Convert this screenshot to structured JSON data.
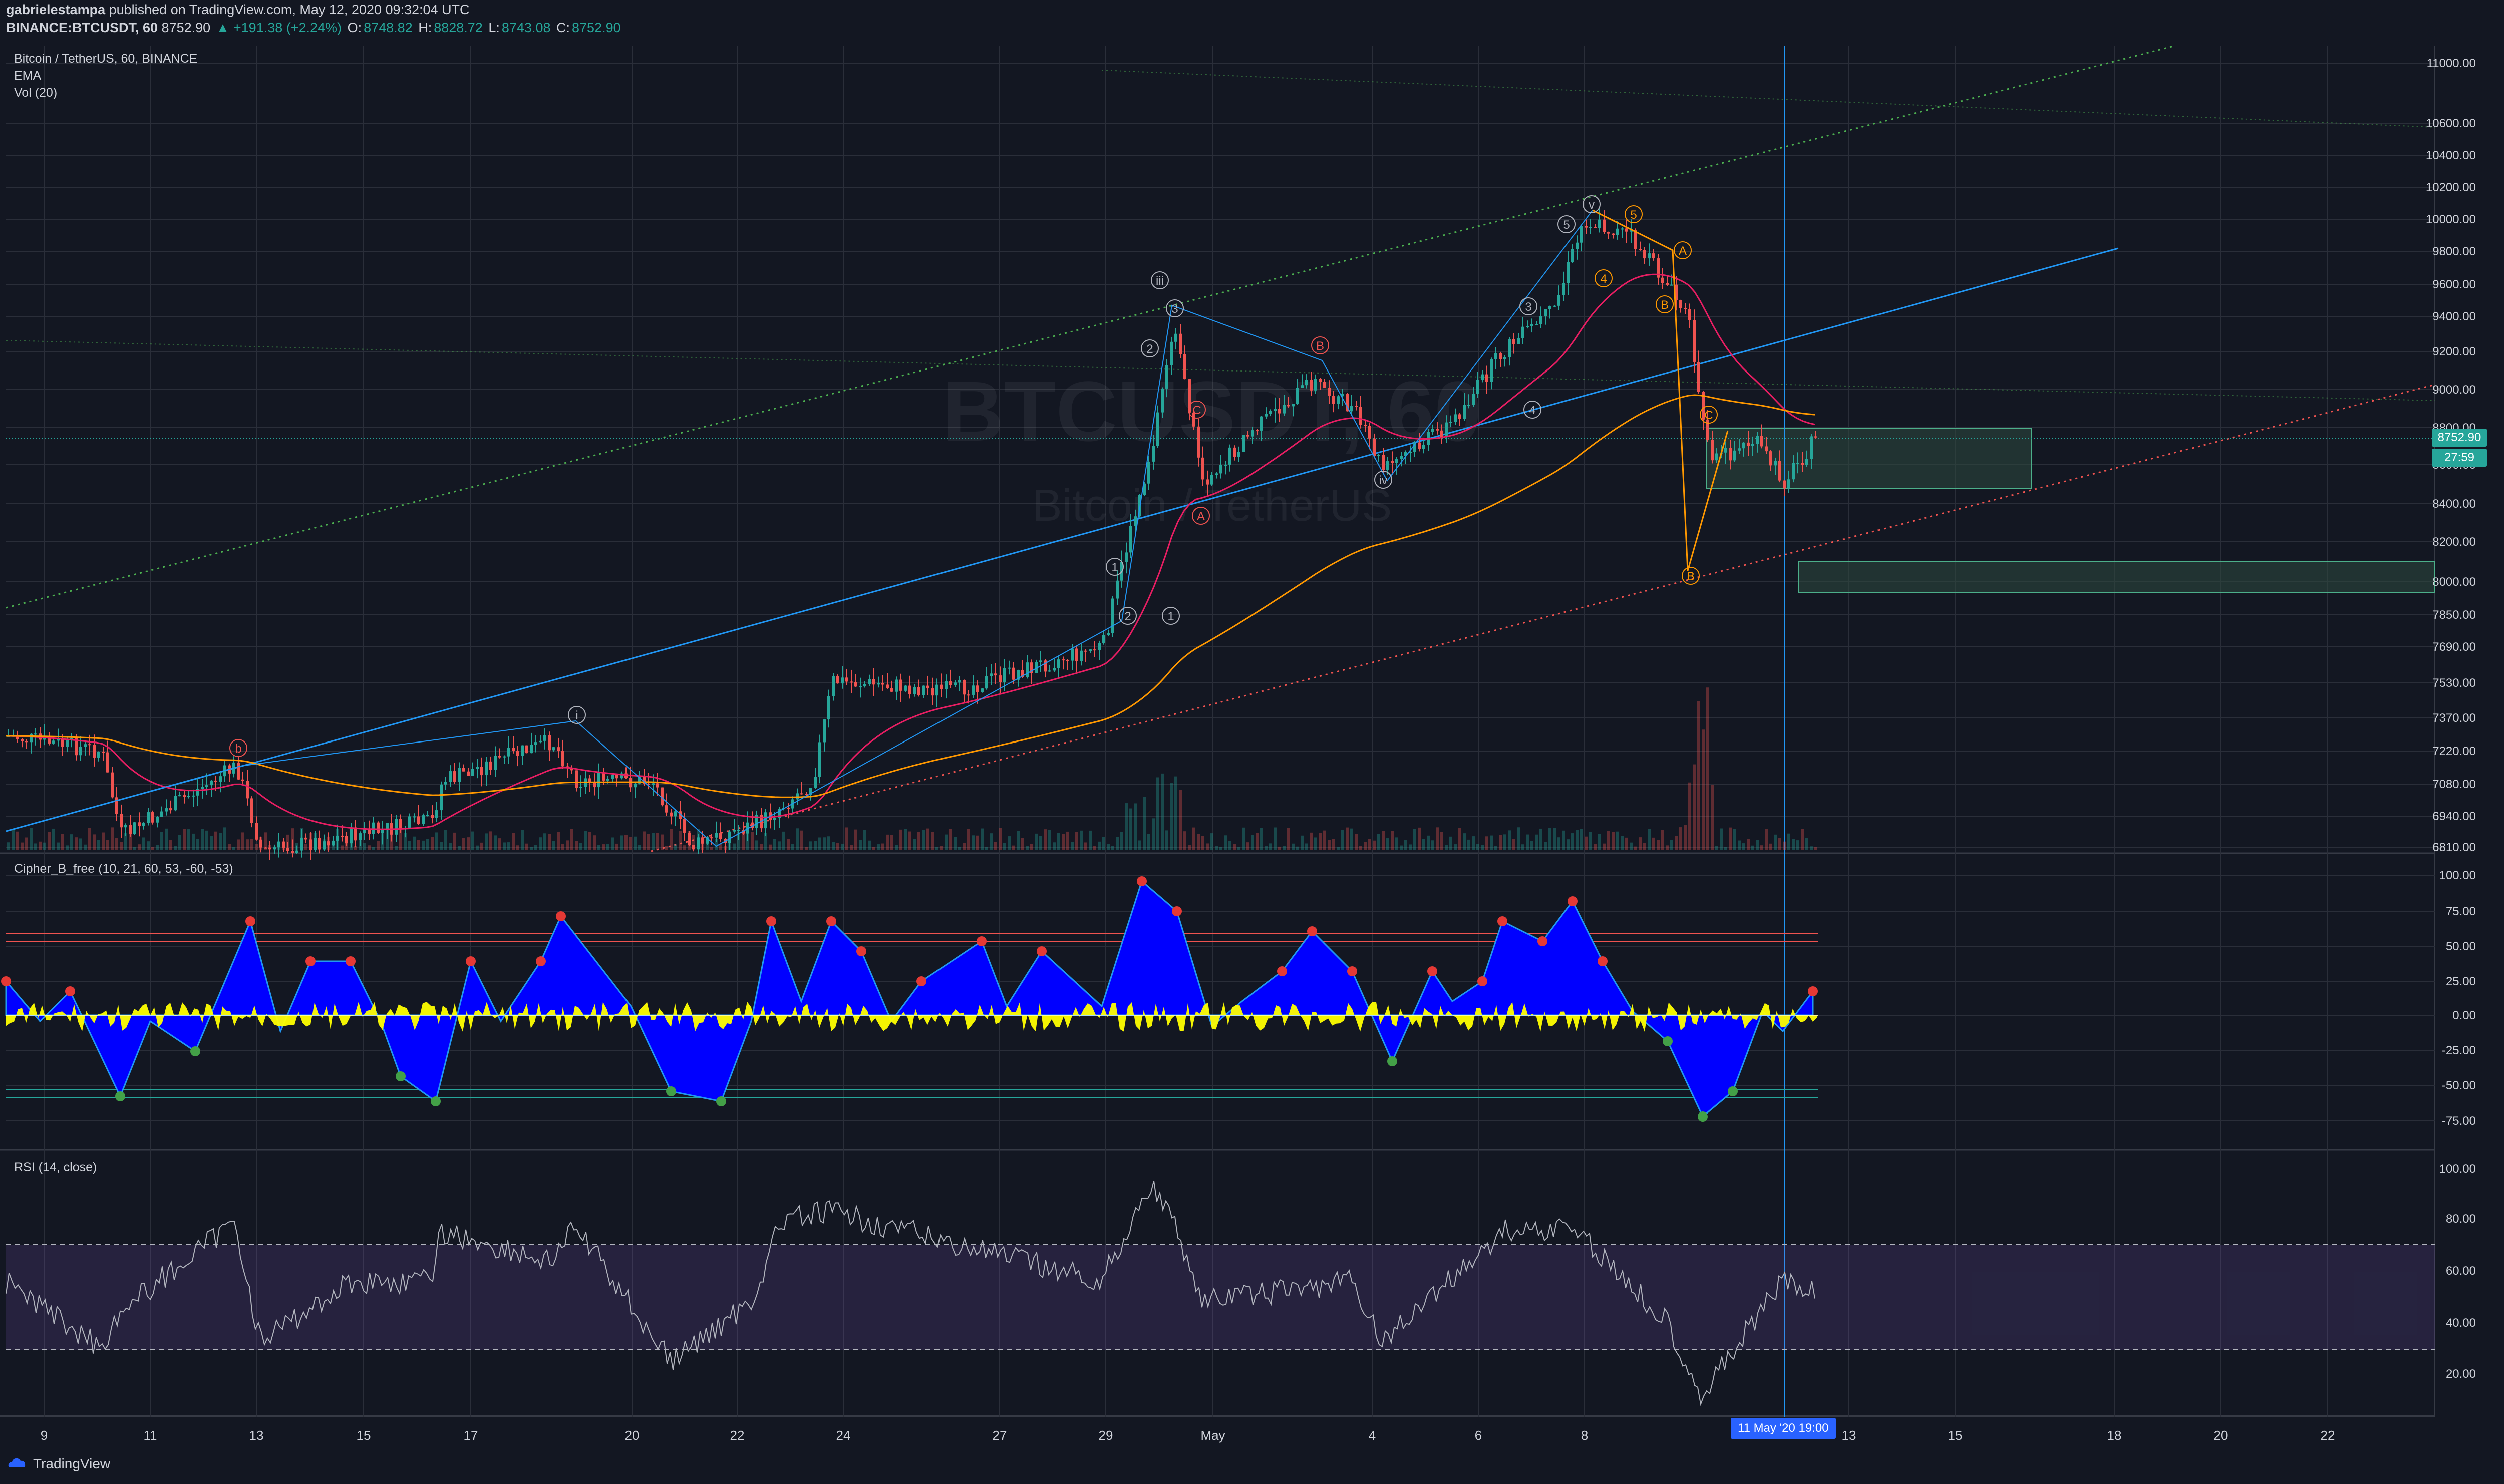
{
  "header": {
    "author": "gabrielestampa",
    "published": "published on TradingView.com, May 12, 2020 09:32:04 UTC",
    "symbol": "BINANCE:BTCUSDT, 60",
    "last": "8752.90",
    "change": "▲ +191.38 (+2.24%)",
    "o_label": "O:",
    "o": "8748.82",
    "h_label": "H:",
    "h": "8828.72",
    "l_label": "L:",
    "l": "8743.08",
    "c_label": "C:",
    "c": "8752.90"
  },
  "main_legend": {
    "title": "Bitcoin / TetherUS, 60, BINANCE",
    "ema": "EMA",
    "vol": "Vol (20)"
  },
  "watermark": {
    "ticker": "BTCUSDT, 60",
    "name": "Bitcoin / TetherUS"
  },
  "price_axis": [
    "11000.00",
    "10600.00",
    "10400.00",
    "10200.00",
    "10000.00",
    "9800.00",
    "9600.00",
    "9400.00",
    "9200.00",
    "9000.00",
    "8800.00",
    "8600.00",
    "8400.00",
    "8200.00",
    "8000.00",
    "7850.00",
    "7690.00",
    "7530.00",
    "7370.00",
    "7220.00",
    "7080.00",
    "6940.00",
    "6810.00"
  ],
  "price_tags": {
    "last": "8752.90",
    "countdown": "27:59"
  },
  "cipher": {
    "legend": "Cipher_B_free (10, 21, 60, 53, -60, -53)",
    "axis": [
      "100.00",
      "75.00",
      "50.00",
      "25.00",
      "0.00",
      "-25.00",
      "-50.00",
      "-75.00"
    ]
  },
  "rsi": {
    "legend": "RSI (14, close)",
    "axis": [
      "100.00",
      "80.00",
      "60.00",
      "40.00",
      "20.00"
    ]
  },
  "time_axis": [
    "9",
    "11",
    "13",
    "15",
    "17",
    "20",
    "22",
    "24",
    "27",
    "29",
    "May",
    "4",
    "6",
    "8",
    "13",
    "15",
    "18",
    "20",
    "22"
  ],
  "crosshair_label": "11 May '20   19:00",
  "wave_labels": [
    "b",
    "i",
    "iii",
    "v",
    "iv",
    "3",
    "4",
    "5",
    "A",
    "B",
    "C",
    "1",
    "2",
    "1",
    "2",
    "3",
    "4",
    "5",
    "A",
    "B",
    "C",
    "B"
  ],
  "footer": {
    "brand": "TradingView"
  },
  "colors": {
    "bg": "#131722",
    "up": "#26a69a",
    "down": "#ef5350",
    "blue_line": "#2196f3",
    "cipher_wave": "#0000ff",
    "cipher_mf": "#ffff00",
    "rsi_band": "#7e57c2",
    "ema_pink": "#e91e63",
    "ema_orange": "#ff9800",
    "zone": "#2e4a3f"
  }
}
